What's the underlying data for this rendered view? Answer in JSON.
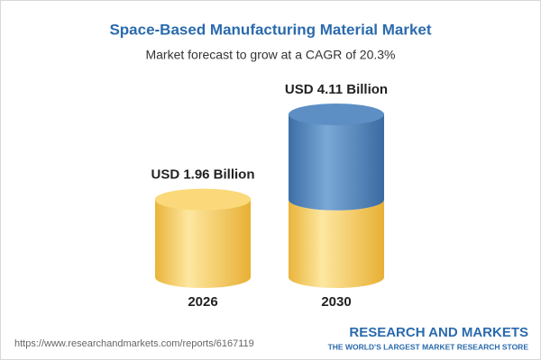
{
  "chart_data": {
    "type": "cylinder-bar",
    "title": "Space-Based Manufacturing Material Market",
    "subtitle": "Market forecast to grow at a CAGR of 20.3%",
    "categories": [
      "2026",
      "2030"
    ],
    "values": [
      1.96,
      4.11
    ],
    "value_labels": [
      "USD 1.96 Billion",
      "USD 4.11 Billion"
    ],
    "colors": [
      "#f2c44e",
      "#4a7fb7"
    ]
  },
  "footer": {
    "url": "https://www.researchandmarkets.com/reports/6167119",
    "brand": "RESEARCH AND MARKETS",
    "tagline": "THE WORLD'S LARGEST MARKET RESEARCH STORE"
  }
}
